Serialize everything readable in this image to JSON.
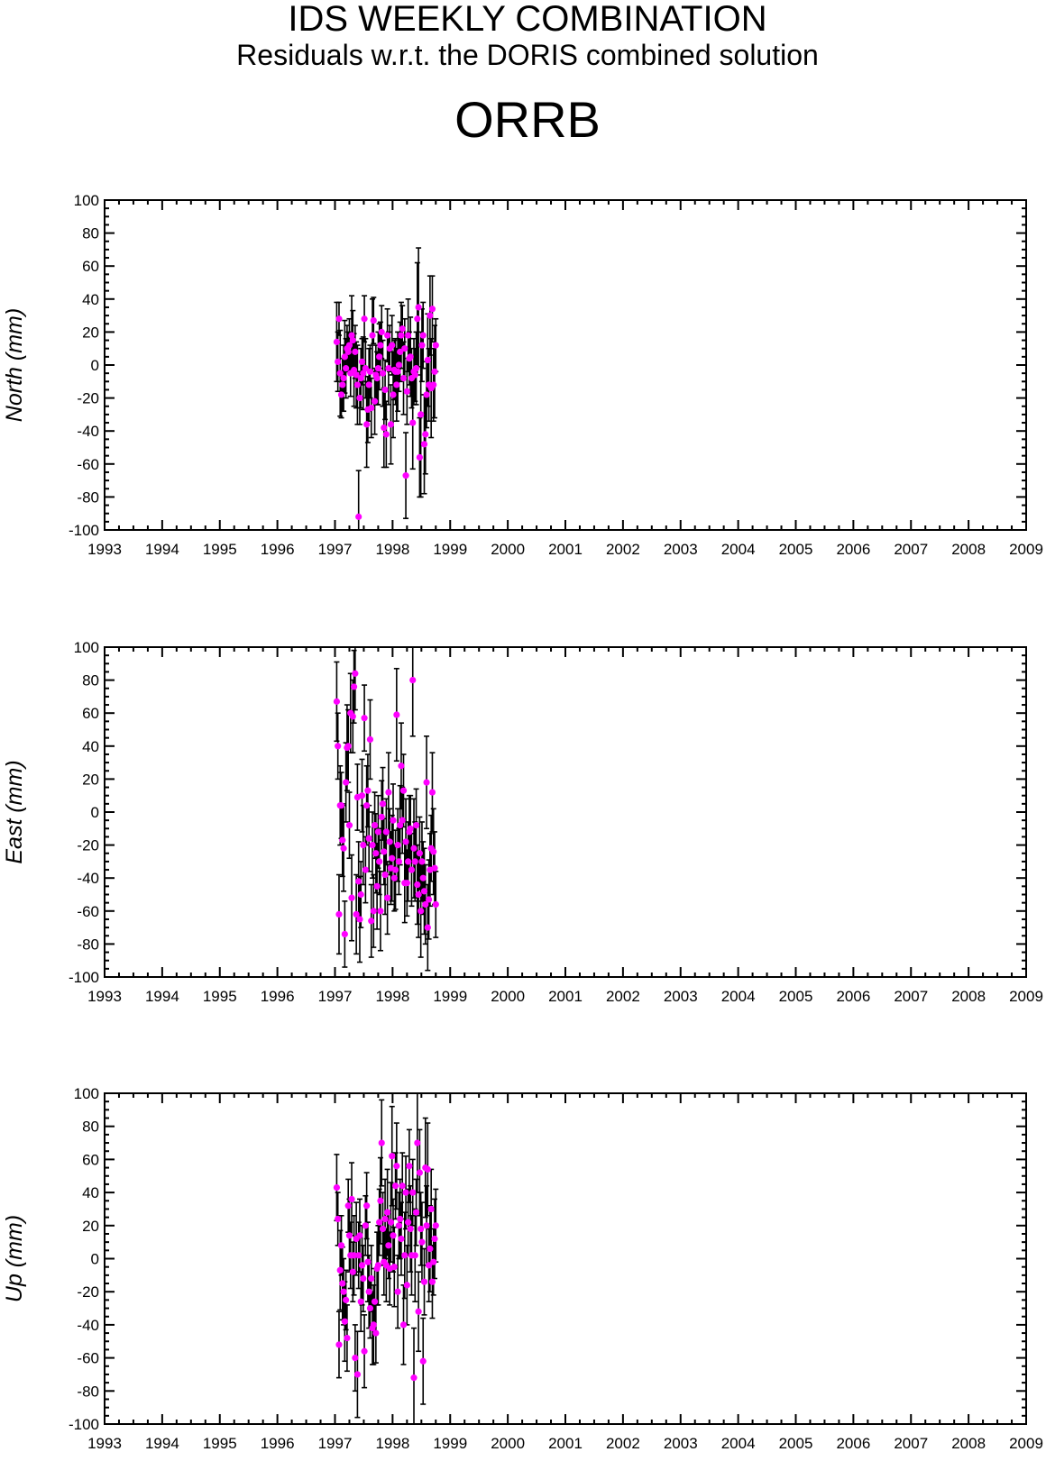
{
  "header": {
    "title": "IDS WEEKLY COMBINATION",
    "subtitle": "Residuals w.r.t. the DORIS combined solution",
    "station": "ORRB"
  },
  "colors": {
    "marker": "#ff00ff",
    "errorbar": "#000000",
    "axis": "#000000"
  },
  "chart_data": [
    {
      "type": "scatter",
      "ylabel": "North (mm)",
      "xlabel": "",
      "xlim": [
        1993,
        2009
      ],
      "ylim": [
        -100,
        100
      ],
      "x_ticks": [
        "1993",
        "1994",
        "1995",
        "1996",
        "1997",
        "1998",
        "1999",
        "2000",
        "2001",
        "2002",
        "2003",
        "2004",
        "2005",
        "2006",
        "2007",
        "2008",
        "2009"
      ],
      "y_ticks": [
        "100",
        "80",
        "60",
        "40",
        "20",
        "0",
        "-20",
        "-40",
        "-60",
        "-80",
        "-100"
      ],
      "grid": false,
      "error_bars": true,
      "series": [
        {
          "x": [
            1997.03,
            1997.05,
            1997.07,
            1997.09,
            1997.11,
            1997.13,
            1997.15,
            1997.17,
            1997.19,
            1997.21,
            1997.23,
            1997.25,
            1997.27,
            1997.29,
            1997.31,
            1997.33,
            1997.35,
            1997.37,
            1997.39,
            1997.41,
            1997.43,
            1997.45,
            1997.47,
            1997.49,
            1997.51,
            1997.53,
            1997.55,
            1997.57,
            1997.59,
            1997.61,
            1997.63,
            1997.65,
            1997.67,
            1997.69,
            1997.71,
            1997.73,
            1997.75,
            1997.77,
            1997.79,
            1997.81,
            1997.83,
            1997.85,
            1997.87,
            1997.89,
            1997.91,
            1997.93,
            1997.95,
            1997.97,
            1997.99,
            1998.01,
            1998.03,
            1998.05,
            1998.07,
            1998.09,
            1998.11,
            1998.13,
            1998.15,
            1998.17,
            1998.19,
            1998.21,
            1998.23,
            1998.25,
            1998.27,
            1998.29,
            1998.31,
            1998.33,
            1998.35,
            1998.37,
            1998.39,
            1998.41,
            1998.43,
            1998.45,
            1998.47,
            1998.49,
            1998.51,
            1998.53,
            1998.55,
            1998.57,
            1998.59,
            1998.61,
            1998.63,
            1998.65,
            1998.67,
            1998.69,
            1998.71,
            1998.73,
            1998.75
          ],
          "y": [
            14,
            2,
            28,
            -5,
            -18,
            -12,
            -8,
            5,
            -2,
            10,
            8,
            12,
            -5,
            18,
            15,
            -3,
            8,
            -6,
            -12,
            -92,
            -20,
            -8,
            2,
            -5,
            28,
            -2,
            -36,
            -27,
            -12,
            -4,
            -26,
            18,
            27,
            -22,
            -6,
            -8,
            -2,
            5,
            12,
            20,
            -5,
            -38,
            -15,
            -42,
            18,
            -2,
            10,
            -36,
            12,
            -18,
            -3,
            -4,
            -12,
            -4,
            0,
            8,
            18,
            22,
            -8,
            10,
            -67,
            -16,
            18,
            4,
            5,
            -8,
            -35,
            -4,
            -6,
            -2,
            28,
            35,
            -56,
            -30,
            12,
            18,
            -48,
            -42,
            -18,
            3,
            -12,
            30,
            -14,
            34,
            -12,
            -4,
            12
          ],
          "err": [
            24,
            18,
            10,
            26,
            14,
            16,
            20,
            22,
            18,
            14,
            12,
            16,
            14,
            24,
            18,
            22,
            16,
            20,
            24,
            28,
            16,
            18,
            14,
            22,
            14,
            18,
            26,
            20,
            22,
            16,
            18,
            22,
            14,
            20,
            18,
            16,
            22,
            20,
            14,
            16,
            20,
            24,
            18,
            20,
            16,
            22,
            14,
            24,
            18,
            26,
            18,
            20,
            22,
            24,
            16,
            18,
            20,
            14,
            22,
            18,
            26,
            20,
            22,
            16,
            24,
            18,
            28,
            20,
            16,
            22,
            34,
            36,
            24,
            50,
            22,
            20,
            30,
            24,
            20,
            28,
            22,
            24,
            30,
            20,
            22,
            28,
            16
          ]
        }
      ]
    },
    {
      "type": "scatter",
      "ylabel": "East (mm)",
      "xlabel": "",
      "xlim": [
        1993,
        2009
      ],
      "ylim": [
        -100,
        100
      ],
      "x_ticks": [
        "1993",
        "1994",
        "1995",
        "1996",
        "1997",
        "1998",
        "1999",
        "2000",
        "2001",
        "2002",
        "2003",
        "2004",
        "2005",
        "2006",
        "2007",
        "2008",
        "2009"
      ],
      "y_ticks": [
        "100",
        "80",
        "60",
        "40",
        "20",
        "0",
        "-20",
        "-40",
        "-60",
        "-80",
        "-100"
      ],
      "grid": false,
      "error_bars": true,
      "series": [
        {
          "x": [
            1997.03,
            1997.05,
            1997.07,
            1997.09,
            1997.11,
            1997.13,
            1997.15,
            1997.17,
            1997.19,
            1997.21,
            1997.23,
            1997.25,
            1997.27,
            1997.29,
            1997.31,
            1997.33,
            1997.35,
            1997.37,
            1997.39,
            1997.41,
            1997.43,
            1997.45,
            1997.47,
            1997.49,
            1997.51,
            1997.53,
            1997.55,
            1997.57,
            1997.59,
            1997.61,
            1997.63,
            1997.65,
            1997.67,
            1997.69,
            1997.71,
            1997.73,
            1997.75,
            1997.77,
            1997.79,
            1997.81,
            1997.83,
            1997.85,
            1997.87,
            1997.89,
            1997.91,
            1997.93,
            1997.95,
            1997.97,
            1997.99,
            1998.01,
            1998.03,
            1998.05,
            1998.07,
            1998.09,
            1998.11,
            1998.13,
            1998.15,
            1998.17,
            1998.19,
            1998.21,
            1998.23,
            1998.25,
            1998.27,
            1998.29,
            1998.31,
            1998.33,
            1998.35,
            1998.37,
            1998.39,
            1998.41,
            1998.43,
            1998.45,
            1998.47,
            1998.49,
            1998.51,
            1998.53,
            1998.55,
            1998.57,
            1998.59,
            1998.61,
            1998.63,
            1998.65,
            1998.67,
            1998.69,
            1998.71,
            1998.73,
            1998.75
          ],
          "y": [
            67,
            40,
            -62,
            4,
            4,
            -17,
            -22,
            -74,
            18,
            39,
            40,
            -8,
            60,
            -52,
            58,
            76,
            84,
            -62,
            9,
            -42,
            -65,
            -50,
            10,
            -20,
            57,
            -35,
            4,
            13,
            -16,
            44,
            -66,
            -20,
            -60,
            -8,
            -25,
            -45,
            -12,
            -30,
            -60,
            -3,
            5,
            -24,
            -38,
            -12,
            -52,
            12,
            -18,
            -34,
            -28,
            -5,
            -40,
            -35,
            59,
            -20,
            -30,
            -8,
            28,
            -5,
            13,
            -43,
            -18,
            -43,
            -30,
            -12,
            -10,
            -35,
            80,
            -22,
            -30,
            -8,
            -44,
            -50,
            -25,
            -60,
            -30,
            -40,
            -48,
            -56,
            18,
            -70,
            -53,
            -35,
            -22,
            12,
            -24,
            -34,
            -56
          ],
          "err": [
            24,
            20,
            24,
            24,
            20,
            22,
            26,
            20,
            24,
            26,
            22,
            20,
            24,
            26,
            22,
            22,
            22,
            24,
            20,
            24,
            26,
            20,
            22,
            24,
            20,
            20,
            24,
            22,
            20,
            24,
            22,
            20,
            22,
            20,
            24,
            26,
            22,
            20,
            24,
            22,
            22,
            20,
            24,
            20,
            22,
            24,
            20,
            22,
            26,
            22,
            20,
            24,
            28,
            22,
            20,
            24,
            26,
            20,
            22,
            24,
            26,
            20,
            24,
            22,
            20,
            22,
            34,
            30,
            24,
            22,
            24,
            26,
            22,
            28,
            24,
            22,
            26,
            24,
            28,
            26,
            24,
            22,
            20,
            24,
            26,
            22,
            20
          ]
        }
      ]
    },
    {
      "type": "scatter",
      "ylabel": "Up (mm)",
      "xlabel": "",
      "xlim": [
        1993,
        2009
      ],
      "ylim": [
        -100,
        100
      ],
      "x_ticks": [
        "1993",
        "1994",
        "1995",
        "1996",
        "1997",
        "1998",
        "1999",
        "2000",
        "2001",
        "2002",
        "2003",
        "2004",
        "2005",
        "2006",
        "2007",
        "2008",
        "2009"
      ],
      "y_ticks": [
        "100",
        "80",
        "60",
        "40",
        "20",
        "0",
        "-20",
        "-40",
        "-60",
        "-80",
        "-100"
      ],
      "grid": false,
      "error_bars": true,
      "series": [
        {
          "x": [
            1997.03,
            1997.05,
            1997.07,
            1997.09,
            1997.11,
            1997.13,
            1997.15,
            1997.17,
            1997.19,
            1997.21,
            1997.23,
            1997.25,
            1997.27,
            1997.29,
            1997.31,
            1997.33,
            1997.35,
            1997.37,
            1997.39,
            1997.41,
            1997.43,
            1997.45,
            1997.47,
            1997.49,
            1997.51,
            1997.53,
            1997.55,
            1997.57,
            1997.59,
            1997.61,
            1997.63,
            1997.65,
            1997.67,
            1997.69,
            1997.71,
            1997.73,
            1997.75,
            1997.77,
            1997.79,
            1997.81,
            1997.83,
            1997.85,
            1997.87,
            1997.89,
            1997.91,
            1997.93,
            1997.95,
            1997.97,
            1997.99,
            1998.01,
            1998.03,
            1998.05,
            1998.07,
            1998.09,
            1998.11,
            1998.13,
            1998.15,
            1998.17,
            1998.19,
            1998.21,
            1998.23,
            1998.25,
            1998.27,
            1998.29,
            1998.31,
            1998.33,
            1998.35,
            1998.37,
            1998.39,
            1998.41,
            1998.43,
            1998.45,
            1998.47,
            1998.49,
            1998.51,
            1998.53,
            1998.55,
            1998.57,
            1998.59,
            1998.61,
            1998.63,
            1998.65,
            1998.67,
            1998.69,
            1998.71,
            1998.73,
            1998.75
          ],
          "y": [
            43,
            24,
            -52,
            -7,
            8,
            -15,
            -20,
            -38,
            -25,
            -48,
            32,
            14,
            2,
            36,
            -8,
            2,
            -60,
            12,
            -70,
            2,
            14,
            -26,
            -4,
            -12,
            -56,
            20,
            32,
            -2,
            -20,
            -30,
            -12,
            -42,
            -40,
            -26,
            -45,
            -6,
            -4,
            22,
            35,
            70,
            18,
            -2,
            24,
            -4,
            28,
            8,
            -6,
            22,
            62,
            14,
            -5,
            44,
            56,
            -20,
            20,
            24,
            12,
            44,
            -40,
            2,
            40,
            -16,
            22,
            56,
            18,
            2,
            40,
            -72,
            2,
            28,
            70,
            -32,
            52,
            18,
            10,
            -62,
            -14,
            55,
            20,
            54,
            -4,
            6,
            30,
            -14,
            -2,
            12,
            20
          ],
          "err": [
            20,
            16,
            20,
            24,
            18,
            22,
            20,
            24,
            18,
            20,
            16,
            22,
            20,
            22,
            18,
            24,
            20,
            22,
            26,
            20,
            22,
            18,
            24,
            20,
            22,
            18,
            20,
            24,
            22,
            18,
            20,
            22,
            24,
            20,
            18,
            22,
            24,
            20,
            26,
            26,
            22,
            20,
            24,
            22,
            26,
            20,
            22,
            24,
            30,
            22,
            24,
            20,
            26,
            22,
            20,
            24,
            22,
            20,
            24,
            26,
            22,
            24,
            20,
            22,
            26,
            24,
            20,
            30,
            28,
            20,
            30,
            24,
            26,
            22,
            24,
            26,
            20,
            30,
            24,
            28,
            22,
            26,
            24,
            22,
            20,
            24,
            22
          ]
        }
      ]
    }
  ]
}
